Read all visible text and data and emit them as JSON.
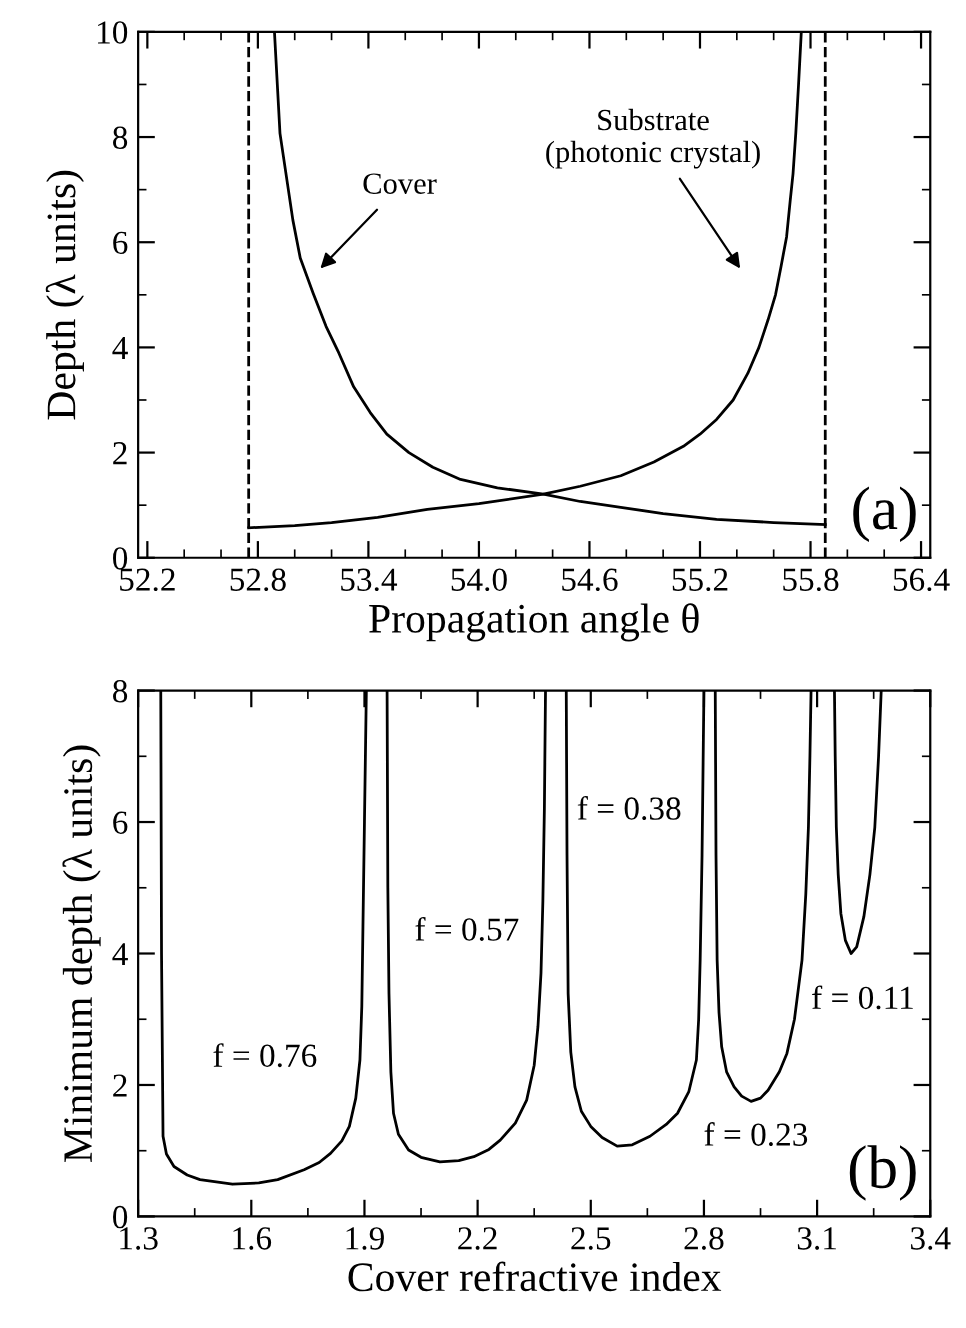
{
  "chart_data": [
    {
      "type": "line",
      "xlabel": "Propagation angle θ",
      "ylabel": "Depth (λ units)",
      "xlim": [
        52.15,
        56.45
      ],
      "ylim": [
        0,
        10
      ],
      "xticks": [
        52.2,
        52.8,
        53.4,
        {
          "value": 54.0,
          "label": "54.0"
        },
        54.6,
        55.2,
        55.8,
        56.4
      ],
      "yticks": [
        0,
        2,
        4,
        6,
        8,
        10
      ],
      "grid": false,
      "legend": false,
      "marker": "none",
      "line_style": "solid",
      "series": [
        {
          "color": "#000000",
          "x": [
            52.89,
            52.92,
            52.99,
            53.03,
            53.1,
            53.17,
            53.24,
            53.32,
            53.41,
            53.5,
            53.62,
            53.75,
            53.9,
            54.1,
            54.35,
            54.55,
            54.77,
            55.0,
            55.29,
            55.6,
            55.88
          ],
          "values": [
            10,
            8.07,
            6.42,
            5.7,
            5.03,
            4.4,
            3.89,
            3.25,
            2.76,
            2.35,
            2.0,
            1.72,
            1.49,
            1.33,
            1.21,
            1.07,
            0.96,
            0.84,
            0.73,
            0.67,
            0.63
          ]
        },
        {
          "color": "#000000",
          "x": [
            52.75,
            53.0,
            53.2,
            53.45,
            53.72,
            54.0,
            54.35,
            54.55,
            54.77,
            54.95,
            55.11,
            55.2,
            55.29,
            55.38,
            55.46,
            55.52,
            55.57,
            55.61,
            55.64,
            55.67,
            55.69,
            55.705,
            55.72,
            55.735,
            55.75
          ],
          "values": [
            0.57,
            0.61,
            0.67,
            0.77,
            0.92,
            1.03,
            1.21,
            1.36,
            1.56,
            1.82,
            2.12,
            2.35,
            2.63,
            3.0,
            3.51,
            4.0,
            4.53,
            5.0,
            5.54,
            6.1,
            6.8,
            7.3,
            8.07,
            9.0,
            10
          ]
        }
      ],
      "ref_lines": [
        {
          "axis": "x",
          "value": 52.75,
          "color": "#000000",
          "line_style": "dashed"
        },
        {
          "axis": "x",
          "value": 55.88,
          "color": "#000000",
          "line_style": "dashed"
        }
      ],
      "annotations": [
        "Cover",
        "Substrate\n(photonic crystal)",
        "(a)"
      ]
    },
    {
      "type": "line",
      "xlabel": "Cover refractive index",
      "ylabel": "Minimum depth (λ units)",
      "xlim": [
        1.3,
        3.4
      ],
      "ylim": [
        0,
        8
      ],
      "xticks": [
        1.3,
        1.6,
        1.9,
        2.2,
        2.5,
        2.8,
        3.1,
        3.4
      ],
      "yticks": [
        0,
        2,
        4,
        6,
        8
      ],
      "grid": false,
      "legend": false,
      "marker": "none",
      "line_style": "solid",
      "series": [
        {
          "color": "#000000",
          "x": [
            1.36,
            1.362,
            1.366,
            1.375,
            1.395,
            1.43,
            1.464,
            1.55,
            1.62,
            1.67,
            1.74,
            1.78,
            1.81,
            1.84,
            1.86,
            1.877,
            1.888,
            1.893,
            1.896,
            1.9,
            1.905
          ],
          "values": [
            8,
            4,
            1.22,
            0.95,
            0.76,
            0.63,
            0.56,
            0.49,
            0.51,
            0.56,
            0.71,
            0.82,
            0.96,
            1.15,
            1.37,
            1.8,
            2.38,
            3.2,
            4.41,
            6,
            8
          ]
        },
        {
          "color": "#000000",
          "x": [
            1.96,
            1.962,
            1.965,
            1.97,
            1.977,
            1.99,
            2.017,
            2.05,
            2.1,
            2.15,
            2.19,
            2.23,
            2.26,
            2.3,
            2.33,
            2.35,
            2.36,
            2.368,
            2.373,
            2.377,
            2.38
          ],
          "values": [
            8,
            5,
            3.39,
            2.2,
            1.57,
            1.25,
            1.01,
            0.9,
            0.83,
            0.85,
            0.91,
            1.02,
            1.16,
            1.42,
            1.77,
            2.3,
            2.89,
            3.7,
            4.8,
            6.2,
            8
          ]
        },
        {
          "color": "#000000",
          "x": [
            2.435,
            2.437,
            2.44,
            2.447,
            2.458,
            2.475,
            2.5,
            2.53,
            2.57,
            2.61,
            2.657,
            2.7,
            2.73,
            2.76,
            2.78,
            2.786,
            2.79,
            2.795,
            2.8
          ],
          "values": [
            8,
            5.5,
            3.39,
            2.5,
            1.97,
            1.6,
            1.37,
            1.2,
            1.07,
            1.09,
            1.22,
            1.4,
            1.57,
            1.9,
            2.38,
            3.0,
            3.9,
            5.5,
            8
          ]
        },
        {
          "color": "#000000",
          "x": [
            2.83,
            2.832,
            2.835,
            2.84,
            2.847,
            2.86,
            2.88,
            2.9,
            2.925,
            2.95,
            2.97,
            3.0,
            3.02,
            3.04,
            3.06,
            3.07,
            3.077,
            3.081,
            3.084
          ],
          "values": [
            8,
            5.5,
            3.9,
            3.1,
            2.58,
            2.2,
            1.97,
            1.83,
            1.75,
            1.8,
            1.92,
            2.2,
            2.48,
            3.0,
            3.9,
            4.9,
            5.92,
            7.0,
            8
          ]
        },
        {
          "color": "#000000",
          "x": [
            3.146,
            3.148,
            3.151,
            3.156,
            3.163,
            3.175,
            3.19,
            3.205,
            3.224,
            3.24,
            3.253,
            3.263,
            3.27
          ],
          "values": [
            8,
            7.0,
            5.92,
            5.2,
            4.61,
            4.2,
            4.0,
            4.1,
            4.56,
            5.2,
            5.92,
            7.0,
            8
          ]
        }
      ],
      "annotations": [
        "f = 0.76",
        "f = 0.57",
        "f = 0.38",
        "f = 0.23",
        "f = 0.11",
        "(b)"
      ]
    }
  ]
}
